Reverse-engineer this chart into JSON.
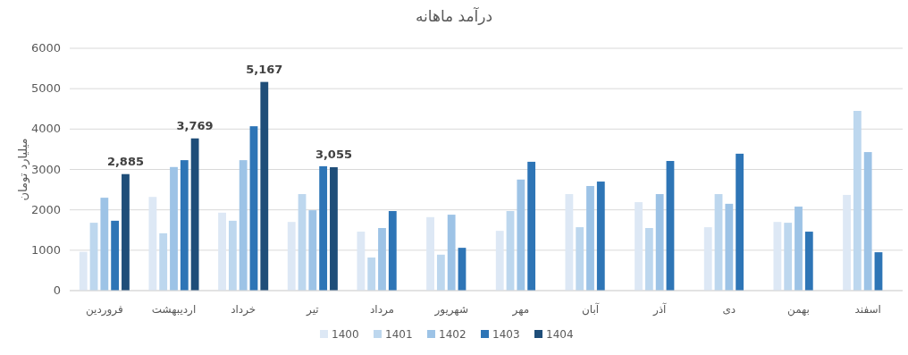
{
  "chart_data": {
    "type": "bar",
    "title": "درآمد ماهانه",
    "ylabel": "میلیارد تومان",
    "categories": [
      "فروردین",
      "اردیبهشت",
      "خرداد",
      "تیر",
      "مرداد",
      "شهریور",
      "مهر",
      "آبان",
      "آذر",
      "دی",
      "بهمن",
      "اسفند"
    ],
    "series": [
      {
        "name": "1400",
        "color": "#dde8f5",
        "values": [
          960,
          2320,
          1930,
          1700,
          1460,
          1820,
          1480,
          2390,
          2190,
          1570,
          1700,
          2370
        ]
      },
      {
        "name": "1401",
        "color": "#bdd7ee",
        "values": [
          1680,
          1420,
          1730,
          2390,
          820,
          890,
          1970,
          1570,
          1550,
          2390,
          1680,
          4450
        ]
      },
      {
        "name": "1402",
        "color": "#9dc3e6",
        "values": [
          2300,
          3060,
          3230,
          1990,
          1550,
          1880,
          2750,
          2590,
          2390,
          2150,
          2080,
          3430
        ]
      },
      {
        "name": "1403",
        "color": "#2e75b6",
        "values": [
          1730,
          3230,
          4070,
          3080,
          1970,
          1060,
          3190,
          2700,
          3210,
          3390,
          1460,
          950
        ]
      },
      {
        "name": "1404",
        "color": "#1f4e79",
        "values": [
          2885,
          3769,
          5167,
          3055,
          null,
          null,
          null,
          null,
          null,
          null,
          null,
          null
        ],
        "value_labels": [
          "2,885",
          "3,769",
          "5,167",
          "3,055",
          null,
          null,
          null,
          null,
          null,
          null,
          null,
          null
        ]
      }
    ],
    "ylim": [
      0,
      6000
    ],
    "yticks": [
      0,
      1000,
      2000,
      3000,
      4000,
      5000,
      6000
    ],
    "grid": "y",
    "legend": "bottom"
  }
}
